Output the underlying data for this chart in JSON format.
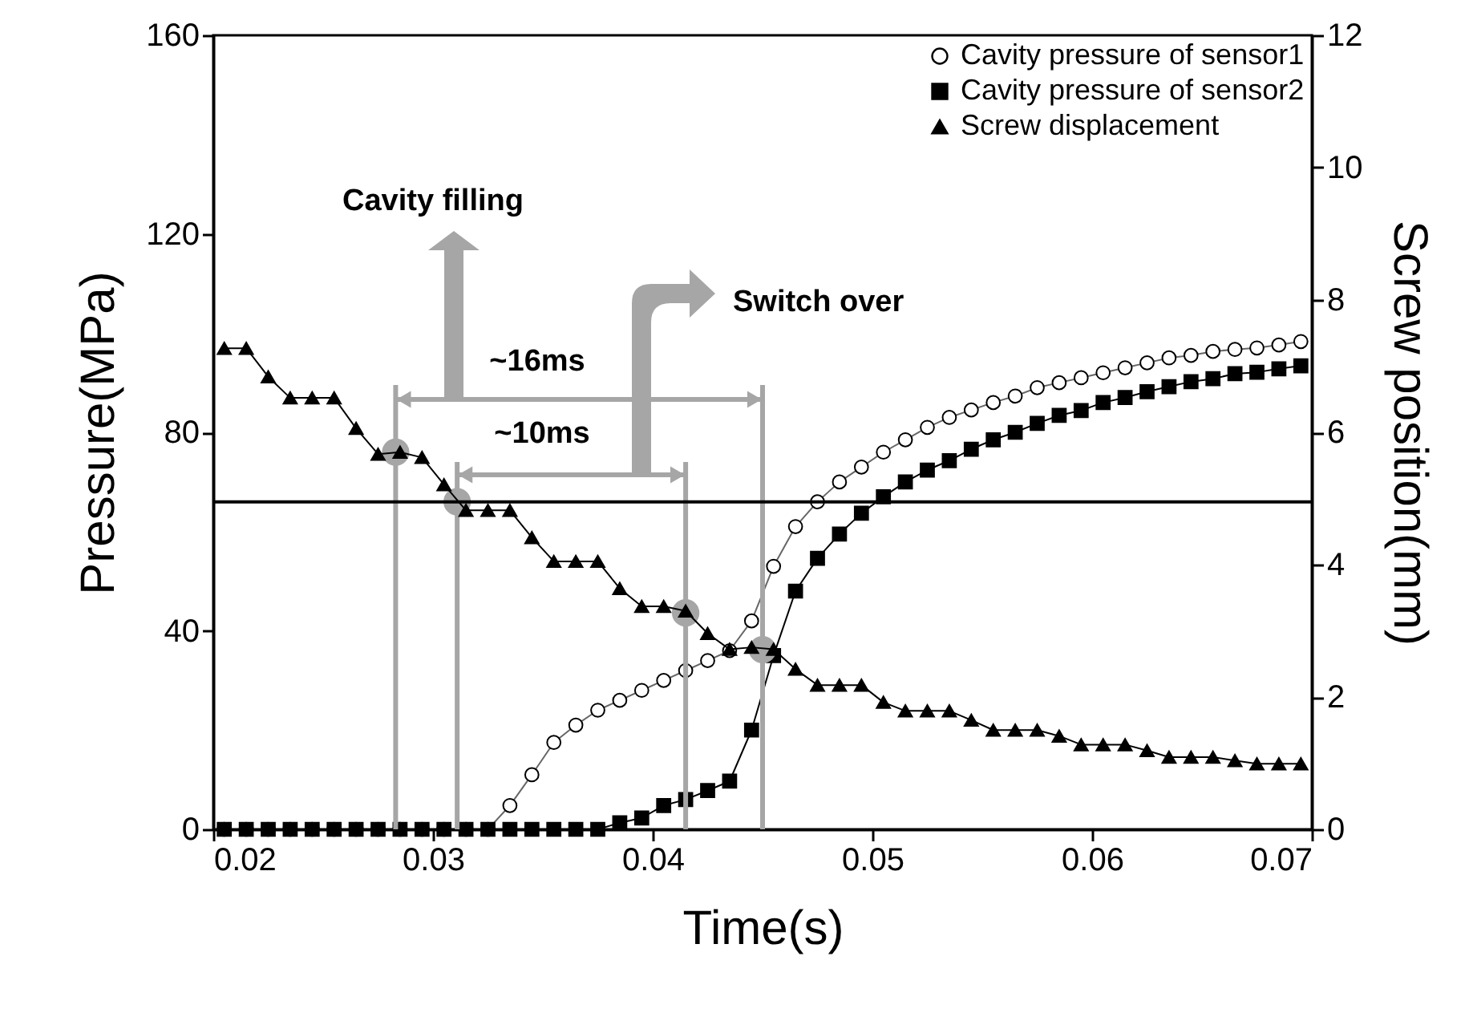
{
  "chart_data": {
    "type": "line",
    "xlabel": "Time(s)",
    "ylabel": "Pressure(MPa)",
    "y2label": "Screw position(mm)",
    "x": [
      0.0205,
      0.0215,
      0.0225,
      0.0235,
      0.0245,
      0.0255,
      0.0265,
      0.0275,
      0.0285,
      0.0295,
      0.0305,
      0.0315,
      0.0325,
      0.0335,
      0.0345,
      0.0355,
      0.0365,
      0.0375,
      0.0385,
      0.0395,
      0.0405,
      0.0415,
      0.0425,
      0.0435,
      0.0445,
      0.0455,
      0.0465,
      0.0475,
      0.0485,
      0.0495,
      0.0505,
      0.0515,
      0.0525,
      0.0535,
      0.0545,
      0.0555,
      0.0565,
      0.0575,
      0.0585,
      0.0595,
      0.0605,
      0.0615,
      0.0625,
      0.0635,
      0.0645,
      0.0655,
      0.0665,
      0.0675,
      0.0685,
      0.0695
    ],
    "series": [
      {
        "name": "Cavity pressure of sensor1",
        "color": "#000000",
        "marker": "circle",
        "values": [
          0,
          0,
          0,
          0,
          0,
          0,
          0,
          0,
          0,
          0,
          0,
          0,
          0,
          4.8,
          11,
          17.5,
          21,
          24,
          26,
          28,
          30,
          32,
          34,
          36,
          42,
          53,
          61,
          66,
          70,
          73,
          76,
          78.5,
          81,
          83,
          84.5,
          86,
          87.3,
          89,
          90,
          91,
          92,
          93,
          94,
          95,
          95.5,
          96.3,
          96.7,
          97,
          97.6,
          98.3
        ]
      },
      {
        "name": "Cavity pressure of sensor2",
        "color": "#000000",
        "marker": "square",
        "values": [
          0,
          0,
          0,
          0,
          0,
          0,
          0,
          0,
          0,
          0,
          0,
          0,
          0,
          0,
          0,
          0,
          0,
          0,
          1.3,
          2.3,
          4.8,
          6,
          7.8,
          9.7,
          20,
          35,
          48,
          54.6,
          59.5,
          63.7,
          67,
          70,
          72.4,
          74.3,
          76.6,
          78.5,
          80,
          81.8,
          83.4,
          84.4,
          86,
          87,
          88.2,
          89.2,
          90.2,
          90.8,
          91.8,
          92.1,
          92.8,
          93.4
        ]
      },
      {
        "name": "Screw displacement",
        "color": "#000000",
        "marker": "triangle",
        "axis": "y2",
        "values": [
          7.27,
          7.27,
          6.84,
          6.52,
          6.52,
          6.52,
          6.06,
          5.67,
          5.7,
          5.62,
          5.21,
          4.82,
          4.82,
          4.82,
          4.41,
          4.05,
          4.05,
          4.05,
          3.64,
          3.37,
          3.37,
          3.3,
          2.96,
          2.72,
          2.75,
          2.72,
          2.42,
          2.18,
          2.18,
          2.18,
          1.92,
          1.79,
          1.79,
          1.79,
          1.65,
          1.5,
          1.5,
          1.5,
          1.41,
          1.28,
          1.28,
          1.28,
          1.19,
          1.09,
          1.09,
          1.09,
          1.04,
          0.99,
          0.99,
          0.99
        ]
      },
      {
        "type": "scatter",
        "color": "#a6a6a6",
        "marker": "circle",
        "x": [
          0.0283,
          0.0311,
          0.0415,
          0.045
        ],
        "values": [
          76,
          66,
          43.6,
          36.2
        ]
      }
    ],
    "xlim": [
      0.02,
      0.07
    ],
    "xticks": [
      0.02,
      0.03,
      0.04,
      0.05,
      0.06,
      0.07
    ],
    "ylim": [
      0,
      160
    ],
    "yticks": [
      0,
      40,
      80,
      120,
      160
    ],
    "y2lim": [
      0,
      12
    ],
    "y2ticks": [
      0,
      2,
      4,
      6,
      8,
      10,
      12
    ],
    "ref_lines": [
      {
        "axis": "x",
        "value": 0.0283,
        "color": "#a6a6a6"
      },
      {
        "axis": "x",
        "value": 0.0311,
        "color": "#a6a6a6"
      },
      {
        "axis": "x",
        "value": 0.0415,
        "color": "#a6a6a6"
      },
      {
        "axis": "x",
        "value": 0.045,
        "color": "#a6a6a6"
      },
      {
        "axis": "y",
        "value": 66,
        "color": "#000000"
      }
    ],
    "annotations": [
      "~16ms",
      "~10ms",
      "Cavity filling",
      "Switch over"
    ],
    "legend": "top right",
    "grid": false,
    "line_style": "solid"
  }
}
